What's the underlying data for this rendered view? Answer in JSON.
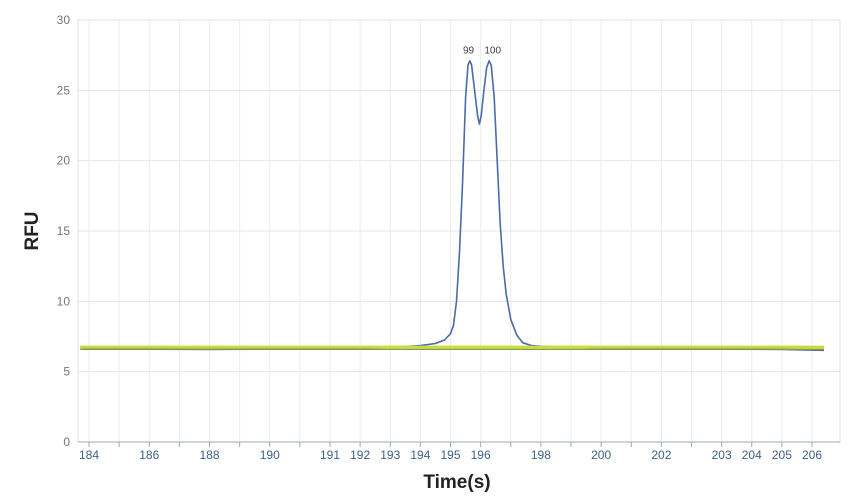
{
  "chart_data": {
    "type": "line",
    "title": "",
    "xlabel": "Time(s)",
    "ylabel": "RFU",
    "ylim": [
      0,
      30
    ],
    "yticks": [
      "0",
      "5",
      "10",
      "15",
      "20",
      "25",
      "30"
    ],
    "grid": true,
    "x_tick_labels": [
      {
        "label": "184",
        "slot": 0
      },
      {
        "label": "186",
        "slot": 2
      },
      {
        "label": "188",
        "slot": 4
      },
      {
        "label": "190",
        "slot": 6
      },
      {
        "label": "191",
        "slot": 8
      },
      {
        "label": "192",
        "slot": 9
      },
      {
        "label": "193",
        "slot": 10
      },
      {
        "label": "194",
        "slot": 11
      },
      {
        "label": "195",
        "slot": 12
      },
      {
        "label": "196",
        "slot": 13
      },
      {
        "label": "198",
        "slot": 15
      },
      {
        "label": "200",
        "slot": 17
      },
      {
        "label": "202",
        "slot": 19
      },
      {
        "label": "203",
        "slot": 21
      },
      {
        "label": "204",
        "slot": 22
      },
      {
        "label": "205",
        "slot": 23
      },
      {
        "label": "206",
        "slot": 24
      }
    ],
    "peak_labels": [
      {
        "text": "99",
        "slot": 12.6,
        "y": 27.2
      },
      {
        "text": "100",
        "slot": 13.4,
        "y": 27.2
      }
    ],
    "series": [
      {
        "color": "#4a6aa8",
        "points": [
          [
            -0.2,
            6.6
          ],
          [
            2,
            6.6
          ],
          [
            4,
            6.58
          ],
          [
            6,
            6.6
          ],
          [
            8,
            6.62
          ],
          [
            9,
            6.65
          ],
          [
            10,
            6.72
          ],
          [
            11,
            6.85
          ],
          [
            11.5,
            7.0
          ],
          [
            11.8,
            7.25
          ],
          [
            12.0,
            7.7
          ],
          [
            12.1,
            8.3
          ],
          [
            12.2,
            10.0
          ],
          [
            12.3,
            13.5
          ],
          [
            12.4,
            18.5
          ],
          [
            12.5,
            24.5
          ],
          [
            12.58,
            26.8
          ],
          [
            12.64,
            27.1
          ],
          [
            12.7,
            26.8
          ],
          [
            12.8,
            25.0
          ],
          [
            12.9,
            23.2
          ],
          [
            12.96,
            22.6
          ],
          [
            13.02,
            23.2
          ],
          [
            13.1,
            24.8
          ],
          [
            13.2,
            26.6
          ],
          [
            13.28,
            27.1
          ],
          [
            13.35,
            26.8
          ],
          [
            13.45,
            24.5
          ],
          [
            13.55,
            20.0
          ],
          [
            13.65,
            15.5
          ],
          [
            13.75,
            12.5
          ],
          [
            13.85,
            10.5
          ],
          [
            14.0,
            8.7
          ],
          [
            14.2,
            7.6
          ],
          [
            14.4,
            7.05
          ],
          [
            14.7,
            6.85
          ],
          [
            15.0,
            6.8
          ],
          [
            16.0,
            6.72
          ],
          [
            17.0,
            6.66
          ],
          [
            19.0,
            6.62
          ],
          [
            21.0,
            6.6
          ],
          [
            23.0,
            6.58
          ],
          [
            24.4,
            6.52
          ]
        ]
      },
      {
        "color": "#c7dc3c",
        "points": [
          [
            -0.3,
            6.75
          ],
          [
            24.4,
            6.75
          ]
        ]
      },
      {
        "color": "#8a9a42",
        "points": [
          [
            -0.3,
            6.58
          ],
          [
            24.4,
            6.58
          ]
        ]
      }
    ]
  }
}
